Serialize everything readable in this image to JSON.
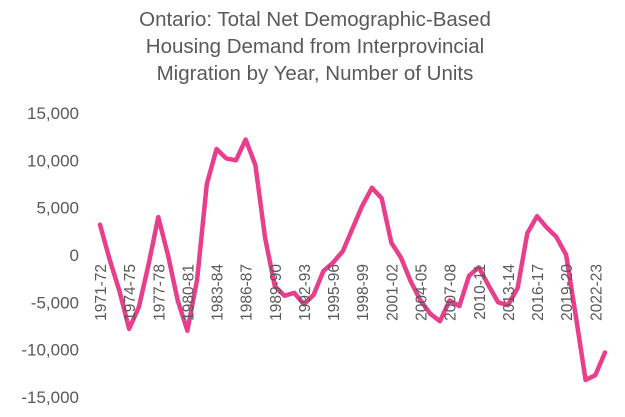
{
  "chart_data": {
    "type": "line",
    "title": "Ontario: Total Net Demographic-Based Housing Demand from Interprovincial Migration by Year, Number of Units",
    "title_lines": [
      "Ontario: Total Net Demographic-Based",
      "Housing Demand from Interprovincial",
      "Migration by Year, Number of Units"
    ],
    "xlabel": "",
    "ylabel": "",
    "ylim": [
      -15000,
      15000
    ],
    "yticks": [
      15000,
      10000,
      5000,
      0,
      -5000,
      -10000,
      -15000
    ],
    "ytick_labels": [
      "15,000",
      "10,000",
      "5,000",
      "0",
      "-5,000",
      "-10,000",
      "-15,000"
    ],
    "grid": false,
    "legend": "none",
    "line_color": "#E83E8C",
    "categories": [
      "1971-72",
      "1972-73",
      "1973-74",
      "1974-75",
      "1975-76",
      "1976-77",
      "1977-78",
      "1978-79",
      "1979-80",
      "1980-81",
      "1981-82",
      "1982-83",
      "1983-84",
      "1984-85",
      "1985-86",
      "1986-87",
      "1987-88",
      "1988-89",
      "1989-90",
      "1990-91",
      "1991-92",
      "1992-93",
      "1993-94",
      "1994-95",
      "1995-96",
      "1996-97",
      "1997-98",
      "1998-99",
      "1999-00",
      "2000-01",
      "2001-02",
      "2002-03",
      "2003-04",
      "2004-05",
      "2005-06",
      "2006-07",
      "2007-08",
      "2008-09",
      "2009-10",
      "2010-11",
      "2011-12",
      "2012-13",
      "2013-14",
      "2014-15",
      "2015-16",
      "2016-17",
      "2017-18",
      "2018-19",
      "2019-20",
      "2020-21",
      "2021-22",
      "2022-23",
      "2023-24"
    ],
    "labeled_categories": [
      "1971-72",
      "1974-75",
      "1977-78",
      "1980-81",
      "1983-84",
      "1986-87",
      "1989-90",
      "1992-93",
      "1995-96",
      "1998-99",
      "2001-02",
      "2004-05",
      "2007-08",
      "2010-11",
      "2013-14",
      "2016-17",
      "2019-20",
      "2022-23"
    ],
    "series": [
      {
        "name": "Net demand from interprovincial migration",
        "values": [
          3200,
          -500,
          -3800,
          -7800,
          -5500,
          -1000,
          4000,
          0,
          -4800,
          -8000,
          -2600,
          7500,
          11200,
          10200,
          10000,
          12200,
          9500,
          1800,
          -3300,
          -4300,
          -4000,
          -5200,
          -4200,
          -1700,
          -800,
          400,
          2800,
          5200,
          7100,
          6000,
          1300,
          -300,
          -2800,
          -4800,
          -6200,
          -7000,
          -4800,
          -5400,
          -2200,
          -1300,
          -3200,
          -5000,
          -5300,
          -3500,
          2300,
          4100,
          2900,
          1900,
          0,
          -6500,
          -13200,
          -12700,
          -10300
        ]
      }
    ]
  }
}
